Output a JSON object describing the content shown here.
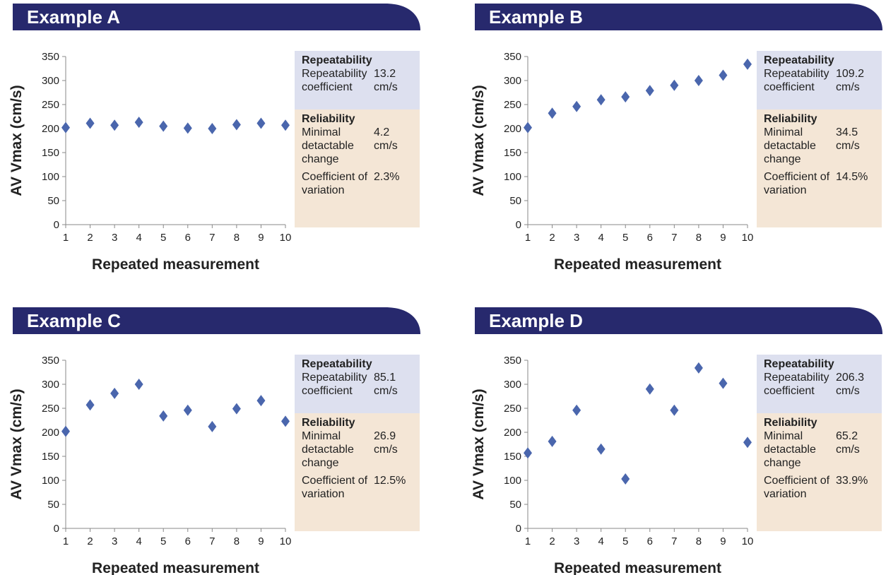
{
  "chart_data": [
    {
      "type": "scatter",
      "title": "Example A",
      "xlabel": "Repeated measurement",
      "ylabel": "AV Vmax (cm/s)",
      "x": [
        1,
        2,
        3,
        4,
        5,
        6,
        7,
        8,
        9,
        10
      ],
      "values": [
        202,
        211,
        207,
        213,
        205,
        201,
        200,
        208,
        211,
        207
      ],
      "xlim": [
        1,
        10
      ],
      "xticks": [
        1,
        2,
        3,
        4,
        5,
        6,
        7,
        8,
        9,
        10
      ],
      "ylim": [
        0,
        350
      ],
      "yticks": [
        0,
        50,
        100,
        150,
        200,
        250,
        300,
        350
      ],
      "color": "#4a66ad",
      "stats": {
        "repeatability": {
          "heading": "Repeatability",
          "label": "Repeatability coefficient",
          "value": "13.2 cm/s"
        },
        "reliability": {
          "heading": "Reliability",
          "rows": [
            {
              "label": "Minimal detactable change",
              "value": "4.2 cm/s"
            },
            {
              "label": "Coefficient of variation",
              "value": "2.3%"
            }
          ]
        }
      }
    },
    {
      "type": "scatter",
      "title": "Example B",
      "xlabel": "Repeated measurement",
      "ylabel": "AV Vmax (cm/s)",
      "x": [
        1,
        2,
        3,
        4,
        5,
        6,
        7,
        8,
        9,
        10
      ],
      "values": [
        202,
        232,
        246,
        260,
        266,
        279,
        290,
        300,
        311,
        334
      ],
      "xlim": [
        1,
        10
      ],
      "xticks": [
        1,
        2,
        3,
        4,
        5,
        6,
        7,
        8,
        9,
        10
      ],
      "ylim": [
        0,
        350
      ],
      "yticks": [
        0,
        50,
        100,
        150,
        200,
        250,
        300,
        350
      ],
      "color": "#4a66ad",
      "stats": {
        "repeatability": {
          "heading": "Repeatability",
          "label": "Repeatability coefficient",
          "value": "109.2 cm/s"
        },
        "reliability": {
          "heading": "Reliability",
          "rows": [
            {
              "label": "Minimal detactable change",
              "value": "34.5 cm/s"
            },
            {
              "label": "Coefficient of variation",
              "value": "14.5%"
            }
          ]
        }
      }
    },
    {
      "type": "scatter",
      "title": "Example C",
      "xlabel": "Repeated measurement",
      "ylabel": "AV Vmax (cm/s)",
      "x": [
        1,
        2,
        3,
        4,
        5,
        6,
        7,
        8,
        9,
        10
      ],
      "values": [
        202,
        257,
        281,
        300,
        234,
        246,
        212,
        249,
        266,
        223
      ],
      "xlim": [
        1,
        10
      ],
      "xticks": [
        1,
        2,
        3,
        4,
        5,
        6,
        7,
        8,
        9,
        10
      ],
      "ylim": [
        0,
        350
      ],
      "yticks": [
        0,
        50,
        100,
        150,
        200,
        250,
        300,
        350
      ],
      "color": "#4a66ad",
      "stats": {
        "repeatability": {
          "heading": "Repeatability",
          "label": "Repeatability coefficient",
          "value": "85.1 cm/s"
        },
        "reliability": {
          "heading": "Reliability",
          "rows": [
            {
              "label": "Minimal detactable change",
              "value": "26.9 cm/s"
            },
            {
              "label": "Coefficient of variation",
              "value": "12.5%"
            }
          ]
        }
      }
    },
    {
      "type": "scatter",
      "title": "Example D",
      "xlabel": "Repeated measurement",
      "ylabel": "AV Vmax (cm/s)",
      "x": [
        1,
        2,
        3,
        4,
        5,
        6,
        7,
        8,
        9,
        10
      ],
      "values": [
        157,
        181,
        246,
        165,
        103,
        290,
        246,
        334,
        302,
        179
      ],
      "xlim": [
        1,
        10
      ],
      "xticks": [
        1,
        2,
        3,
        4,
        5,
        6,
        7,
        8,
        9,
        10
      ],
      "ylim": [
        0,
        350
      ],
      "yticks": [
        0,
        50,
        100,
        150,
        200,
        250,
        300,
        350
      ],
      "color": "#4a66ad",
      "stats": {
        "repeatability": {
          "heading": "Repeatability",
          "label": "Repeatability coefficient",
          "value": "206.3 cm/s"
        },
        "reliability": {
          "heading": "Reliability",
          "rows": [
            {
              "label": "Minimal detactable change",
              "value": "65.2 cm/s"
            },
            {
              "label": "Coefficient of variation",
              "value": "33.9%"
            }
          ]
        }
      }
    }
  ]
}
